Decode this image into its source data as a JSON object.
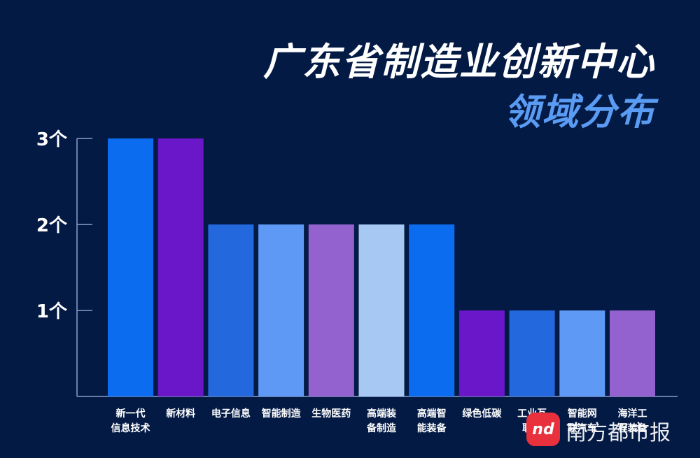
{
  "header": {
    "title": "广东省制造业创新中心",
    "subtitle": "领域分布"
  },
  "watermark": {
    "logo_text": "nd",
    "brand": "南方都市报",
    "logo_icon": "nd-logo-icon"
  },
  "colors": {
    "background": "#031a45",
    "axis": "#8aa0c8"
  },
  "chart_data": {
    "type": "bar",
    "categories": [
      [
        "新一代",
        "信息技术"
      ],
      [
        "新材料"
      ],
      [
        "电子信息"
      ],
      [
        "智能制造"
      ],
      [
        "生物医药"
      ],
      [
        "高端装",
        "备制造"
      ],
      [
        "高端智",
        "能装备"
      ],
      [
        "绿色低碳"
      ],
      [
        "工业互",
        "联网"
      ],
      [
        "智能网",
        "联汽车"
      ],
      [
        "海洋工",
        "程装备"
      ]
    ],
    "values": [
      3,
      3,
      2,
      2,
      2,
      2,
      2,
      1,
      1,
      1,
      1
    ],
    "bar_colors": [
      "#0b6cf0",
      "#6a16c9",
      "#2468dd",
      "#5e9af5",
      "#9462cf",
      "#a6c8f3",
      "#0b6cf0",
      "#6a16c9",
      "#2468dd",
      "#5e9af5",
      "#9462cf"
    ],
    "yticks": [
      {
        "value": 1,
        "label": "1个"
      },
      {
        "value": 2,
        "label": "2个"
      },
      {
        "value": 3,
        "label": "3个"
      }
    ],
    "ylim": [
      0,
      3
    ],
    "grid": false,
    "legend": "none"
  }
}
